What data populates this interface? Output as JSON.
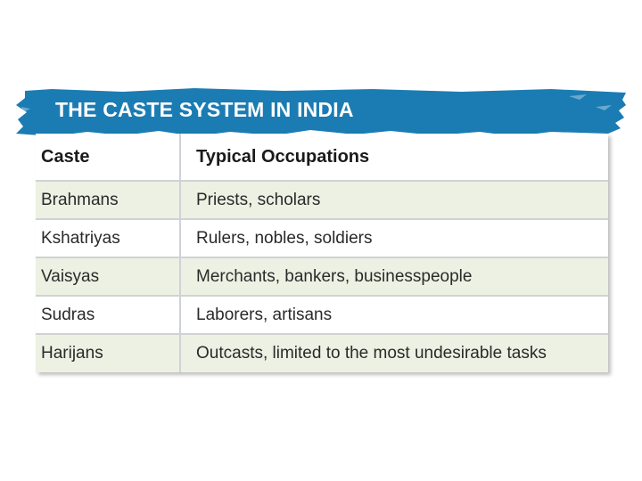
{
  "title": "THE CASTE SYSTEM IN INDIA",
  "colors": {
    "banner": "#1b7cb3",
    "row_alt": "#edf1e3",
    "row_plain": "#ffffff",
    "divider": "#cfd2d6"
  },
  "table": {
    "headers": [
      "Caste",
      "Typical Occupations"
    ],
    "rows": [
      [
        "Brahmans",
        "Priests, scholars"
      ],
      [
        "Kshatriyas",
        "Rulers, nobles, soldiers"
      ],
      [
        "Vaisyas",
        "Merchants, bankers, businesspeople"
      ],
      [
        "Sudras",
        "Laborers, artisans"
      ],
      [
        "Harijans",
        "Outcasts, limited to the most undesirable tasks"
      ]
    ]
  }
}
